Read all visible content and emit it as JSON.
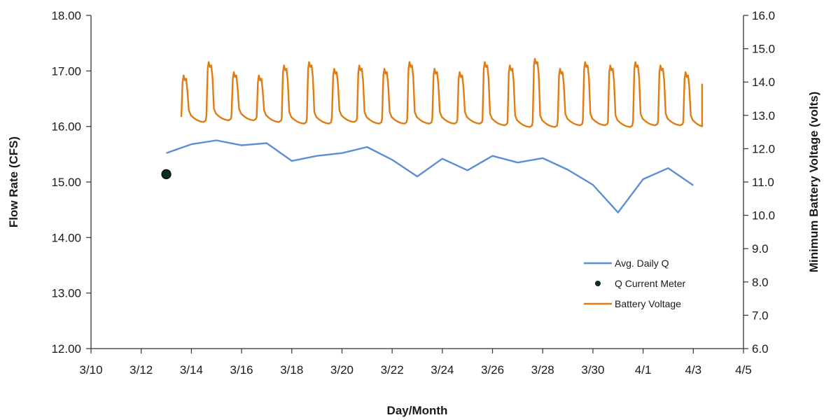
{
  "chart_data": {
    "type": "line",
    "xlabel": "Day/Month",
    "ylabel_left": "Flow Rate (CFS)",
    "ylabel_right": "Minimum Battery Voltage (volts)",
    "x_range": [
      "3/10",
      "4/5"
    ],
    "x_ticks": [
      "3/10",
      "3/12",
      "3/14",
      "3/16",
      "3/18",
      "3/20",
      "3/22",
      "3/24",
      "3/26",
      "3/28",
      "3/30",
      "4/1",
      "4/3",
      "4/5"
    ],
    "y_left_range": [
      12.0,
      18.0
    ],
    "y_left_ticks": [
      "12.00",
      "13.00",
      "14.00",
      "15.00",
      "16.00",
      "17.00",
      "18.00"
    ],
    "y_right_range": [
      6.0,
      16.0
    ],
    "y_right_ticks": [
      "6.0",
      "7.0",
      "8.0",
      "9.0",
      "10.0",
      "11.0",
      "12.0",
      "13.0",
      "14.0",
      "15.0",
      "16.0"
    ],
    "grid": false,
    "legend_position": "lower-right",
    "series": [
      {
        "name": "Avg. Daily Q",
        "axis": "left",
        "color": "#5b8ed6",
        "x": [
          "3/13",
          "3/14",
          "3/15",
          "3/16",
          "3/17",
          "3/18",
          "3/19",
          "3/20",
          "3/21",
          "3/22",
          "3/23",
          "3/24",
          "3/25",
          "3/26",
          "3/27",
          "3/28",
          "3/29",
          "3/30",
          "3/31",
          "4/1",
          "4/2",
          "4/3"
        ],
        "y": [
          15.52,
          15.68,
          15.75,
          15.66,
          15.7,
          15.38,
          15.47,
          15.52,
          15.63,
          15.4,
          15.1,
          15.42,
          15.21,
          15.47,
          15.35,
          15.43,
          15.22,
          14.95,
          14.45,
          15.05,
          15.25,
          14.94
        ]
      },
      {
        "name": "Q Current Meter",
        "axis": "left",
        "color": "#0d2e1c",
        "x": [
          "3/13"
        ],
        "y": [
          15.14
        ]
      },
      {
        "name": "Battery Voltage",
        "axis": "right",
        "color": "#e07c12",
        "pattern": "daily cycle",
        "cycle_start": "3/13",
        "cycle_end": "4/3",
        "daily_peak": [
          14.2,
          14.6,
          14.3,
          14.2,
          14.5,
          14.6,
          14.4,
          14.5,
          14.4,
          14.6,
          14.4,
          14.3,
          14.6,
          14.5,
          14.7,
          14.4,
          14.6,
          14.5,
          14.6,
          14.5,
          14.3
        ],
        "daily_min": [
          12.8,
          12.85,
          12.85,
          12.8,
          12.75,
          12.75,
          12.8,
          12.75,
          12.75,
          12.75,
          12.75,
          12.75,
          12.7,
          12.65,
          12.65,
          12.7,
          12.7,
          12.65,
          12.7,
          12.7,
          12.65
        ],
        "end_value": 13.95
      }
    ]
  }
}
